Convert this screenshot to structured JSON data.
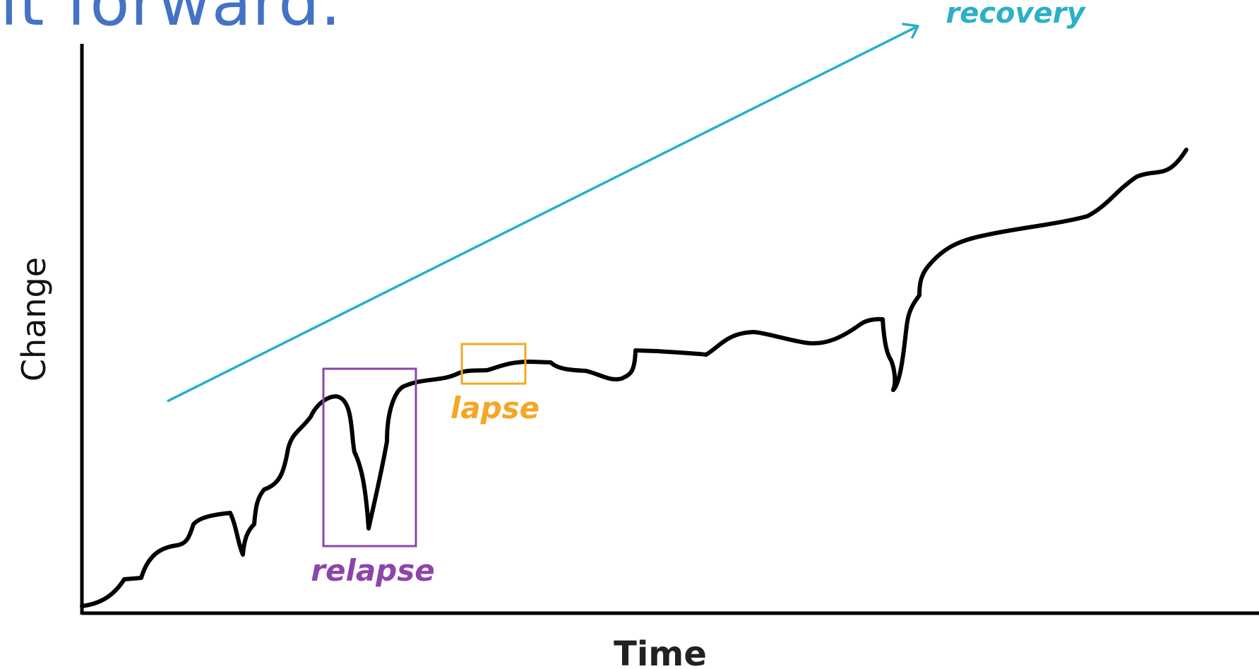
{
  "slide": {
    "title_fragment": "it forward."
  },
  "diagram": {
    "x_axis_label": "Time",
    "y_axis_label": "Change",
    "labels": {
      "recovery": "recovery",
      "lapse": "lapse",
      "relapse": "relapse"
    },
    "colors": {
      "title": "#4472c4",
      "recovery": "#2bb0c6",
      "lapse": "#f5a623",
      "relapse": "#8e44ad",
      "line": "#000000",
      "axes": "#000000"
    }
  }
}
